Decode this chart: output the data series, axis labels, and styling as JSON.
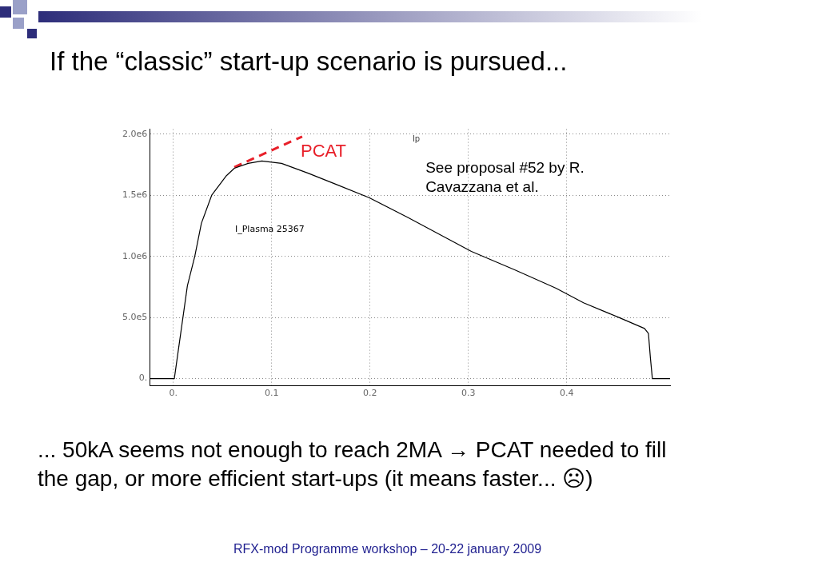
{
  "chart_data": {
    "type": "line",
    "title": "If the “classic” start-up scenario is pursued...",
    "annotations": [
      "Ip",
      "See proposal #52 by R. Cavazzana et al.",
      "PCAT",
      "... 50kA seems not enough to reach 2MA → PCAT needed to fill the gap, or more efficient start-ups (it means faster... ☹)",
      "RFX-mod Programme workshop – 20-22 january 2009"
    ],
    "series": [
      {
        "name": "I_Plasma 25367",
        "color": "#000000",
        "line_style": "solid",
        "x": [
          -0.024,
          0.001,
          0.0143,
          0.0218,
          0.0285,
          0.039,
          0.054,
          0.062,
          0.076,
          0.09,
          0.11,
          0.137,
          0.165,
          0.199,
          0.238,
          0.303,
          0.347,
          0.389,
          0.417,
          0.453,
          0.479,
          0.483,
          0.485,
          0.487,
          0.505
        ],
        "values": [
          0,
          0,
          760000,
          1000000,
          1270000,
          1500000,
          1660000,
          1720000,
          1760000,
          1780000,
          1760000,
          1680000,
          1590000,
          1480000,
          1320000,
          1040000,
          890000,
          740000,
          620000,
          500000,
          410000,
          370000,
          170000,
          0,
          0
        ]
      },
      {
        "color": "#e8202a",
        "line_style": "dashed",
        "x": [
          0.062,
          0.131
        ],
        "values": [
          1730000,
          1980000
        ]
      }
    ],
    "xlim": [
      -0.024,
      0.505
    ],
    "ylim": [
      -60000,
      2040000
    ],
    "xticks": [
      {
        "value": 0,
        "label": "0."
      },
      0.1,
      0.2,
      0.3,
      0.4
    ],
    "yticks": [
      {
        "value": 0,
        "label": "0."
      },
      {
        "value": 500000,
        "label": "5.0e5"
      },
      {
        "value": 1000000,
        "label": "1.0e6"
      },
      {
        "value": 1500000,
        "label": "1.5e6"
      },
      {
        "value": 2000000,
        "label": "2.0e6"
      }
    ],
    "grid": true,
    "legend": false,
    "marker": "none"
  }
}
